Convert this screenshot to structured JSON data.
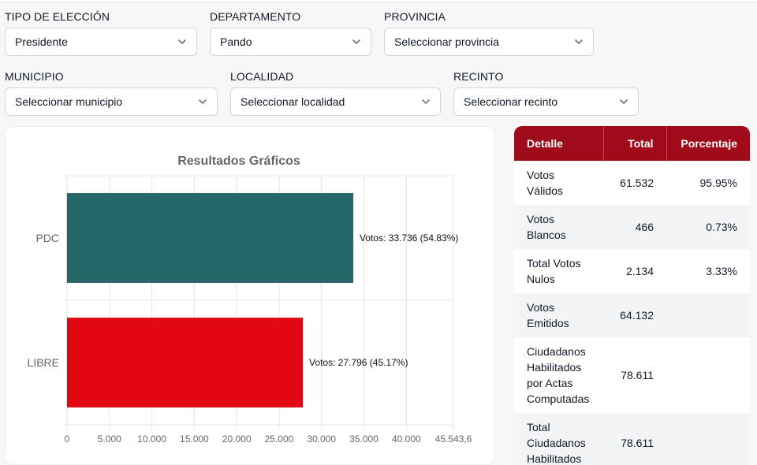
{
  "filters": [
    {
      "label": "TIPO DE ELECCIÓN",
      "value": "Presidente",
      "placeholder": false
    },
    {
      "label": "DEPARTAMENTO",
      "value": "Pando",
      "placeholder": false
    },
    {
      "label": "PROVINCIA",
      "value": "Seleccionar provincia",
      "placeholder": true
    },
    {
      "label": "MUNICIPIO",
      "value": "Seleccionar municipio",
      "placeholder": true
    },
    {
      "label": "LOCALIDAD",
      "value": "Seleccionar localidad",
      "placeholder": true
    },
    {
      "label": "RECINTO",
      "value": "Seleccionar recinto",
      "placeholder": true
    }
  ],
  "icons": {
    "dropdown": "chevron-down-icon"
  },
  "chart_data": {
    "type": "bar",
    "orientation": "horizontal",
    "title": "Resultados Gráficos",
    "categories": [
      "PDC",
      "LIBRE"
    ],
    "values": [
      33736,
      27796
    ],
    "data_labels": [
      "Votos: 33.736 (54.83%)",
      "Votos: 27.796 (45.17%)"
    ],
    "colors": [
      "#26676a",
      "#e30613"
    ],
    "xlim": [
      0,
      45543.6
    ],
    "x_ticks": [
      0,
      5000,
      10000,
      15000,
      20000,
      25000,
      30000,
      35000,
      40000,
      45543.6
    ],
    "x_tick_labels": [
      "0",
      "5.000",
      "10.000",
      "15.000",
      "20.000",
      "25.000",
      "30.000",
      "35.000",
      "40.000",
      "45.543,6"
    ],
    "grid": true
  },
  "table": {
    "headers": [
      "Detalle",
      "Total",
      "Porcentaje"
    ],
    "rows": [
      {
        "detalle": "Votos Válidos",
        "total": "61.532",
        "porcentaje": "95.95%"
      },
      {
        "detalle": "Votos Blancos",
        "total": "466",
        "porcentaje": "0.73%"
      },
      {
        "detalle": "Total Votos Nulos",
        "total": "2.134",
        "porcentaje": "3.33%"
      },
      {
        "detalle": "Votos Emitidos",
        "total": "64.132",
        "porcentaje": ""
      },
      {
        "detalle": "Ciudadanos Habilitados por Actas Computadas",
        "total": "78.611",
        "porcentaje": ""
      },
      {
        "detalle": "Total Ciudadanos Habilitados",
        "total": "78.611",
        "porcentaje": ""
      }
    ],
    "header_color": "#a00b1b"
  }
}
